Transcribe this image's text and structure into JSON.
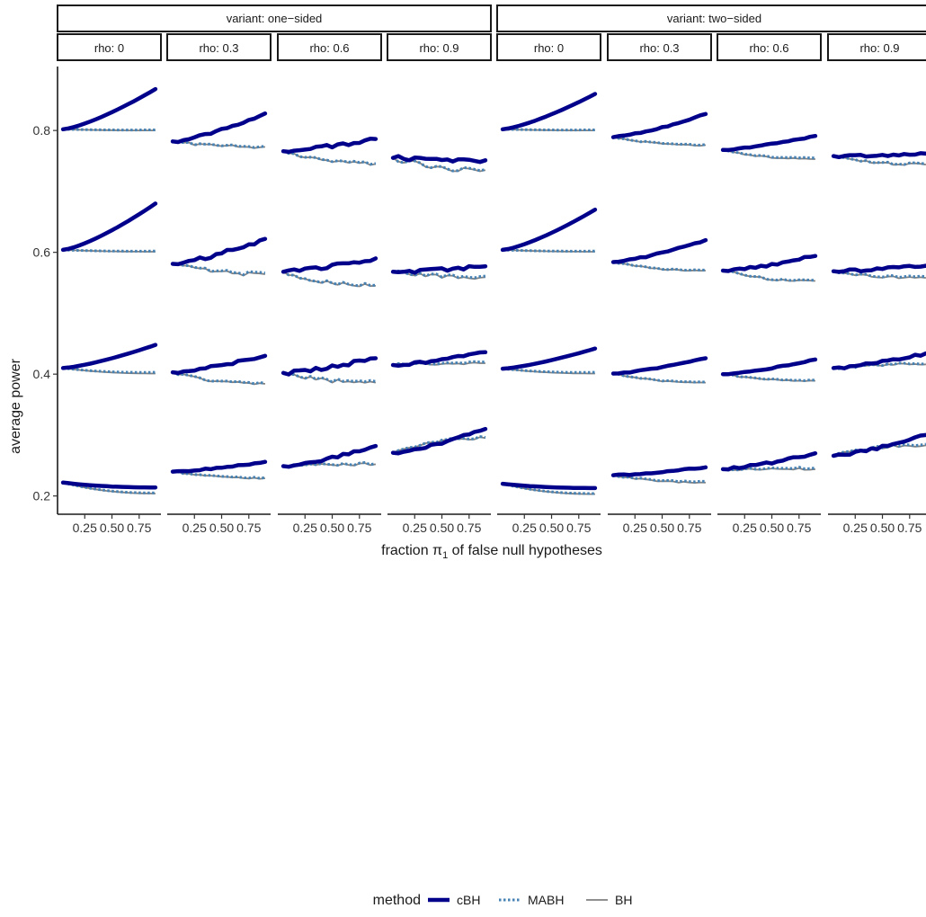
{
  "chart_data": {
    "type": "line",
    "facet_columns": {
      "variant_strips": [
        "variant: one−sided",
        "variant: two−sided"
      ],
      "rho_strips": [
        "rho: 0",
        "rho: 0.3",
        "rho: 0.6",
        "rho: 0.9"
      ]
    },
    "x": [
      0.05,
      0.1,
      0.15,
      0.2,
      0.25,
      0.3,
      0.35,
      0.4,
      0.45,
      0.5,
      0.55,
      0.6,
      0.65,
      0.7,
      0.75,
      0.8,
      0.85,
      0.9
    ],
    "xticks": [
      0.25,
      0.5,
      0.75
    ],
    "xtick_labels": [
      "0.25",
      "0.50",
      "0.75"
    ],
    "xlim": [
      0.0,
      0.95
    ],
    "yticks": [
      0.2,
      0.4,
      0.6,
      0.8
    ],
    "ytick_labels": [
      "0.2",
      "0.4",
      "0.6",
      "0.8"
    ],
    "ylim": [
      0.17,
      0.905
    ],
    "xlabel": "fraction π",
    "xlabel_sub": "1",
    "xlabel_rest": " of false null hypotheses",
    "ylabel": "average power",
    "legend": {
      "title": "method",
      "position": "bottom",
      "entries": [
        {
          "label": "cBH",
          "color": "#00008B",
          "style": "solid-thick"
        },
        {
          "label": "MABH",
          "color": "#4682B4",
          "style": "dotted"
        },
        {
          "label": "BH",
          "color": "#808080",
          "style": "solid-thin"
        }
      ]
    },
    "groups": [
      {
        "variant": 0,
        "rho": 0,
        "start": 0.802,
        "cbh": 0.868,
        "bh": 0.8,
        "mabh": 0.801,
        "noise": 0.0
      },
      {
        "variant": 0,
        "rho": 1,
        "start": 0.782,
        "cbh": 0.828,
        "bh": 0.773,
        "mabh": 0.774,
        "noise": 0.002
      },
      {
        "variant": 0,
        "rho": 2,
        "start": 0.766,
        "cbh": 0.786,
        "bh": 0.745,
        "mabh": 0.746,
        "noise": 0.003
      },
      {
        "variant": 0,
        "rho": 3,
        "start": 0.755,
        "cbh": 0.751,
        "bh": 0.735,
        "mabh": 0.736,
        "noise": 0.004
      },
      {
        "variant": 0,
        "rho": 0,
        "start": 0.604,
        "cbh": 0.68,
        "bh": 0.601,
        "mabh": 0.602,
        "noise": 0.0
      },
      {
        "variant": 0,
        "rho": 1,
        "start": 0.581,
        "cbh": 0.622,
        "bh": 0.564,
        "mabh": 0.566,
        "noise": 0.003
      },
      {
        "variant": 0,
        "rho": 2,
        "start": 0.568,
        "cbh": 0.59,
        "bh": 0.545,
        "mabh": 0.546,
        "noise": 0.003
      },
      {
        "variant": 0,
        "rho": 3,
        "start": 0.568,
        "cbh": 0.577,
        "bh": 0.559,
        "mabh": 0.561,
        "noise": 0.003
      },
      {
        "variant": 0,
        "rho": 0,
        "start": 0.41,
        "cbh": 0.448,
        "bh": 0.401,
        "mabh": 0.403,
        "noise": 0.0
      },
      {
        "variant": 0,
        "rho": 1,
        "start": 0.403,
        "cbh": 0.43,
        "bh": 0.384,
        "mabh": 0.385,
        "noise": 0.002
      },
      {
        "variant": 0,
        "rho": 2,
        "start": 0.402,
        "cbh": 0.426,
        "bh": 0.386,
        "mabh": 0.388,
        "noise": 0.003
      },
      {
        "variant": 0,
        "rho": 3,
        "start": 0.415,
        "cbh": 0.436,
        "bh": 0.418,
        "mabh": 0.42,
        "noise": 0.002
      },
      {
        "variant": 0,
        "rho": 0,
        "start": 0.222,
        "cbh": 0.214,
        "bh": 0.204,
        "mabh": 0.205,
        "noise": 0.0
      },
      {
        "variant": 0,
        "rho": 1,
        "start": 0.24,
        "cbh": 0.256,
        "bh": 0.229,
        "mabh": 0.23,
        "noise": 0.001
      },
      {
        "variant": 0,
        "rho": 2,
        "start": 0.249,
        "cbh": 0.282,
        "bh": 0.252,
        "mabh": 0.253,
        "noise": 0.002
      },
      {
        "variant": 0,
        "rho": 3,
        "start": 0.271,
        "cbh": 0.31,
        "bh": 0.295,
        "mabh": 0.296,
        "noise": 0.002
      },
      {
        "variant": 1,
        "rho": 0,
        "start": 0.802,
        "cbh": 0.86,
        "bh": 0.8,
        "mabh": 0.801,
        "noise": 0.0
      },
      {
        "variant": 1,
        "rho": 1,
        "start": 0.789,
        "cbh": 0.827,
        "bh": 0.776,
        "mabh": 0.777,
        "noise": 0.001
      },
      {
        "variant": 1,
        "rho": 2,
        "start": 0.768,
        "cbh": 0.791,
        "bh": 0.753,
        "mabh": 0.755,
        "noise": 0.001
      },
      {
        "variant": 1,
        "rho": 3,
        "start": 0.758,
        "cbh": 0.762,
        "bh": 0.744,
        "mabh": 0.745,
        "noise": 0.002
      },
      {
        "variant": 1,
        "rho": 0,
        "start": 0.604,
        "cbh": 0.67,
        "bh": 0.601,
        "mabh": 0.602,
        "noise": 0.0
      },
      {
        "variant": 1,
        "rho": 1,
        "start": 0.584,
        "cbh": 0.62,
        "bh": 0.57,
        "mabh": 0.571,
        "noise": 0.001
      },
      {
        "variant": 1,
        "rho": 2,
        "start": 0.57,
        "cbh": 0.594,
        "bh": 0.553,
        "mabh": 0.554,
        "noise": 0.002
      },
      {
        "variant": 1,
        "rho": 3,
        "start": 0.569,
        "cbh": 0.578,
        "bh": 0.558,
        "mabh": 0.56,
        "noise": 0.002
      },
      {
        "variant": 1,
        "rho": 0,
        "start": 0.409,
        "cbh": 0.442,
        "bh": 0.401,
        "mabh": 0.403,
        "noise": 0.0
      },
      {
        "variant": 1,
        "rho": 1,
        "start": 0.401,
        "cbh": 0.426,
        "bh": 0.386,
        "mabh": 0.387,
        "noise": 0.001
      },
      {
        "variant": 1,
        "rho": 2,
        "start": 0.4,
        "cbh": 0.424,
        "bh": 0.389,
        "mabh": 0.39,
        "noise": 0.001
      },
      {
        "variant": 1,
        "rho": 3,
        "start": 0.41,
        "cbh": 0.434,
        "bh": 0.416,
        "mabh": 0.417,
        "noise": 0.002
      },
      {
        "variant": 1,
        "rho": 0,
        "start": 0.22,
        "cbh": 0.213,
        "bh": 0.203,
        "mabh": 0.204,
        "noise": 0.0
      },
      {
        "variant": 1,
        "rho": 1,
        "start": 0.234,
        "cbh": 0.247,
        "bh": 0.222,
        "mabh": 0.224,
        "noise": 0.001
      },
      {
        "variant": 1,
        "rho": 2,
        "start": 0.244,
        "cbh": 0.27,
        "bh": 0.244,
        "mabh": 0.246,
        "noise": 0.002
      },
      {
        "variant": 1,
        "rho": 3,
        "start": 0.266,
        "cbh": 0.3,
        "bh": 0.283,
        "mabh": 0.285,
        "noise": 0.002
      }
    ]
  }
}
